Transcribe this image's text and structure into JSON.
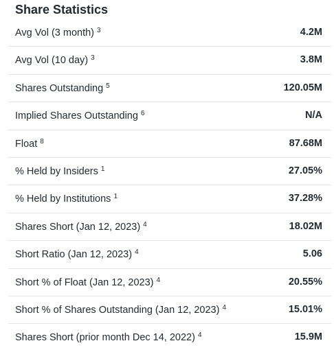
{
  "header": {
    "title": "Share Statistics"
  },
  "table": {
    "rows": [
      {
        "label": "Avg Vol (3 month)",
        "note": "3",
        "value": "4.2M"
      },
      {
        "label": "Avg Vol (10 day)",
        "note": "3",
        "value": "3.8M"
      },
      {
        "label": "Shares Outstanding",
        "note": "5",
        "value": "120.05M"
      },
      {
        "label": "Implied Shares Outstanding",
        "note": "6",
        "value": "N/A"
      },
      {
        "label": "Float",
        "note": "8",
        "value": "87.68M"
      },
      {
        "label": "% Held by Insiders",
        "note": "1",
        "value": "27.05%"
      },
      {
        "label": "% Held by Institutions",
        "note": "1",
        "value": "37.28%"
      },
      {
        "label": "Shares Short (Jan 12, 2023)",
        "note": "4",
        "value": "18.02M"
      },
      {
        "label": "Short Ratio (Jan 12, 2023)",
        "note": "4",
        "value": "5.06"
      },
      {
        "label": "Short % of Float (Jan 12, 2023)",
        "note": "4",
        "value": "20.55%"
      },
      {
        "label": "Short % of Shares Outstanding (Jan 12, 2023)",
        "note": "4",
        "value": "15.01%"
      },
      {
        "label": "Shares Short (prior month Dec 14, 2022)",
        "note": "4",
        "value": "15.9M"
      }
    ]
  }
}
